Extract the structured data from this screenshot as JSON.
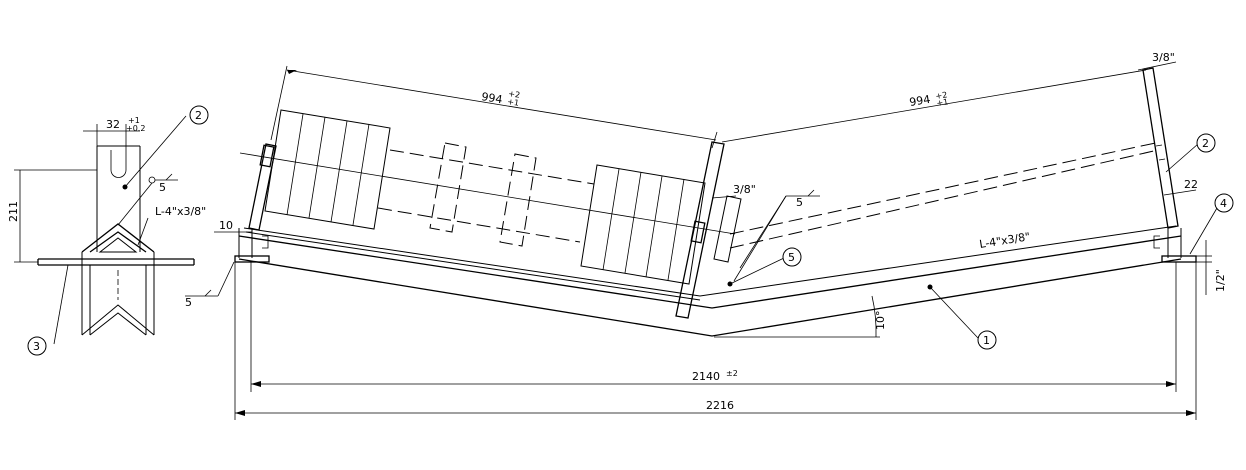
{
  "dims": {
    "len_left": "994",
    "len_left_tol_up": "+2",
    "len_left_tol_dn": "+1",
    "len_right": "994",
    "len_right_tol_up": "+2",
    "len_right_tol_dn": "+1",
    "span_inner": "2140",
    "span_inner_tol": "±2",
    "span_outer": "2216",
    "height": "211",
    "width_32": "32",
    "width_32_tol_up": "+1",
    "width_32_tol_dn": "+0.2",
    "dim_10": "10",
    "dim_22": "22",
    "angle": "10°",
    "plate_thk_left": "3/8\"",
    "plate_thk_right": "3/8\"",
    "base_thk": "1/2\""
  },
  "labels": {
    "angle_side": "L-4\"x3/8\"",
    "angle_main": "L-4\"x3/8\"",
    "weld_side": "5",
    "weld_mid": "5",
    "weld_base": "5"
  },
  "balloons": {
    "b1": "1",
    "b2_side": "2",
    "b2_right": "2",
    "b3": "3",
    "b4": "4",
    "b5": "5"
  }
}
